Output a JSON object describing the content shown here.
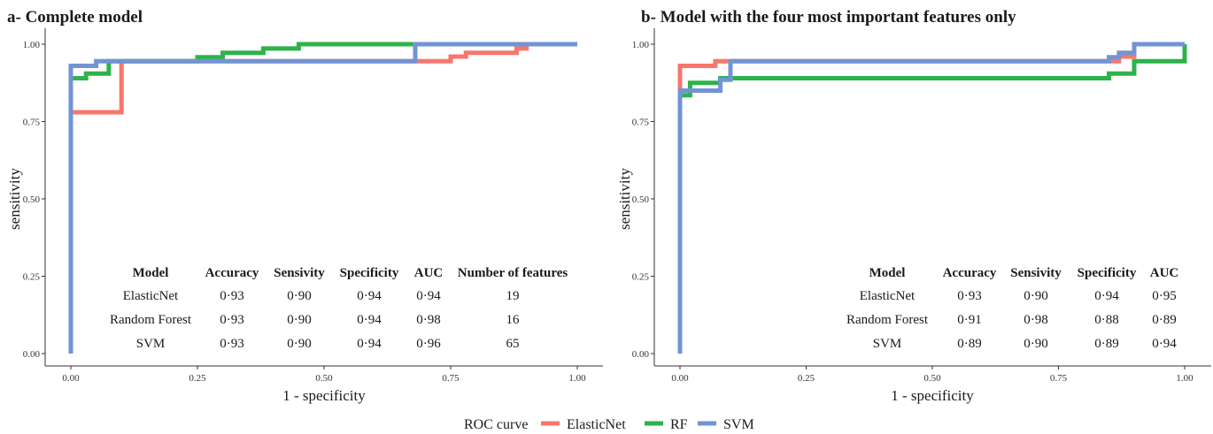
{
  "legend": {
    "title": "ROC curve",
    "items": [
      {
        "label": "ElasticNet",
        "color": "#F8766D"
      },
      {
        "label": "RF",
        "color": "#2DB34A"
      },
      {
        "label": "SVM",
        "color": "#7294D4"
      }
    ]
  },
  "chart_data": [
    {
      "type": "line",
      "title": "a- Complete model",
      "xlabel": "1 - specificity",
      "ylabel": "sensitivity",
      "xlim": [
        0,
        1
      ],
      "ylim": [
        0,
        1
      ],
      "x_ticks": [
        "0.00",
        "0.25",
        "0.50",
        "0.75",
        "1.00"
      ],
      "y_ticks": [
        "0.00",
        "0.25",
        "0.50",
        "0.75",
        "1.00"
      ],
      "grid": false,
      "series": [
        {
          "name": "ElasticNet",
          "color": "#F8766D",
          "points": [
            [
              0,
              0
            ],
            [
              0,
              0.78
            ],
            [
              0.1,
              0.78
            ],
            [
              0.1,
              0.945
            ],
            [
              0.68,
              0.945
            ],
            [
              0.75,
              0.945
            ],
            [
              0.75,
              0.96
            ],
            [
              0.78,
              0.96
            ],
            [
              0.78,
              0.972
            ],
            [
              0.88,
              0.972
            ],
            [
              0.88,
              0.986
            ],
            [
              0.9,
              0.986
            ],
            [
              0.9,
              1
            ],
            [
              1,
              1
            ]
          ]
        },
        {
          "name": "RF",
          "color": "#2DB34A",
          "points": [
            [
              0,
              0
            ],
            [
              0,
              0.89
            ],
            [
              0.03,
              0.89
            ],
            [
              0.03,
              0.905
            ],
            [
              0.075,
              0.905
            ],
            [
              0.075,
              0.945
            ],
            [
              0.25,
              0.945
            ],
            [
              0.25,
              0.958
            ],
            [
              0.3,
              0.958
            ],
            [
              0.3,
              0.972
            ],
            [
              0.38,
              0.972
            ],
            [
              0.38,
              0.986
            ],
            [
              0.45,
              0.986
            ],
            [
              0.45,
              1
            ],
            [
              1,
              1
            ]
          ]
        },
        {
          "name": "SVM",
          "color": "#7294D4",
          "points": [
            [
              0,
              0
            ],
            [
              0,
              0.93
            ],
            [
              0.05,
              0.93
            ],
            [
              0.05,
              0.945
            ],
            [
              0.68,
              0.945
            ],
            [
              0.68,
              1
            ],
            [
              1,
              1
            ]
          ]
        }
      ],
      "table": {
        "headers": [
          "Model",
          "Accuracy",
          "Sensivity",
          "Specificity",
          "AUC",
          "Number of features"
        ],
        "rows": [
          [
            "ElasticNet",
            "0·93",
            "0·90",
            "0·94",
            "0·94",
            "19"
          ],
          [
            "Random Forest",
            "0·93",
            "0·90",
            "0·94",
            "0·98",
            "16"
          ],
          [
            "SVM",
            "0·93",
            "0·90",
            "0·94",
            "0·96",
            "65"
          ]
        ]
      }
    },
    {
      "type": "line",
      "title": "b- Model with the four most important features only",
      "xlabel": "1 - specificity",
      "ylabel": "sensitivity",
      "xlim": [
        0,
        1
      ],
      "ylim": [
        0,
        1
      ],
      "x_ticks": [
        "0.00",
        "0.25",
        "0.50",
        "0.75",
        "1.00"
      ],
      "y_ticks": [
        "0.00",
        "0.25",
        "0.50",
        "0.75",
        "1.00"
      ],
      "grid": false,
      "series": [
        {
          "name": "ElasticNet",
          "color": "#F8766D",
          "points": [
            [
              0,
              0
            ],
            [
              0,
              0.93
            ],
            [
              0.07,
              0.93
            ],
            [
              0.07,
              0.945
            ],
            [
              0.87,
              0.945
            ],
            [
              0.87,
              0.96
            ],
            [
              0.9,
              0.96
            ],
            [
              0.9,
              1
            ],
            [
              1,
              1
            ]
          ]
        },
        {
          "name": "RF",
          "color": "#2DB34A",
          "points": [
            [
              0,
              0
            ],
            [
              0,
              0.835
            ],
            [
              0.02,
              0.835
            ],
            [
              0.02,
              0.875
            ],
            [
              0.08,
              0.875
            ],
            [
              0.08,
              0.89
            ],
            [
              0.85,
              0.89
            ],
            [
              0.85,
              0.905
            ],
            [
              0.9,
              0.905
            ],
            [
              0.9,
              0.945
            ],
            [
              1,
              0.945
            ],
            [
              1,
              1
            ]
          ]
        },
        {
          "name": "SVM",
          "color": "#7294D4",
          "points": [
            [
              0,
              0
            ],
            [
              0,
              0.85
            ],
            [
              0.08,
              0.85
            ],
            [
              0.08,
              0.885
            ],
            [
              0.1,
              0.885
            ],
            [
              0.1,
              0.945
            ],
            [
              0.85,
              0.945
            ],
            [
              0.85,
              0.958
            ],
            [
              0.87,
              0.958
            ],
            [
              0.87,
              0.972
            ],
            [
              0.9,
              0.972
            ],
            [
              0.9,
              1
            ],
            [
              1,
              1
            ]
          ]
        }
      ],
      "table": {
        "headers": [
          "Model",
          "Accuracy",
          "Sensivity",
          "Specificity",
          "AUC"
        ],
        "rows": [
          [
            "ElasticNet",
            "0·93",
            "0·90",
            "0·94",
            "0·95"
          ],
          [
            "Random Forest",
            "0·91",
            "0·98",
            "0·88",
            "0·89"
          ],
          [
            "SVM",
            "0·89",
            "0·90",
            "0·89",
            "0·94"
          ]
        ]
      }
    }
  ]
}
